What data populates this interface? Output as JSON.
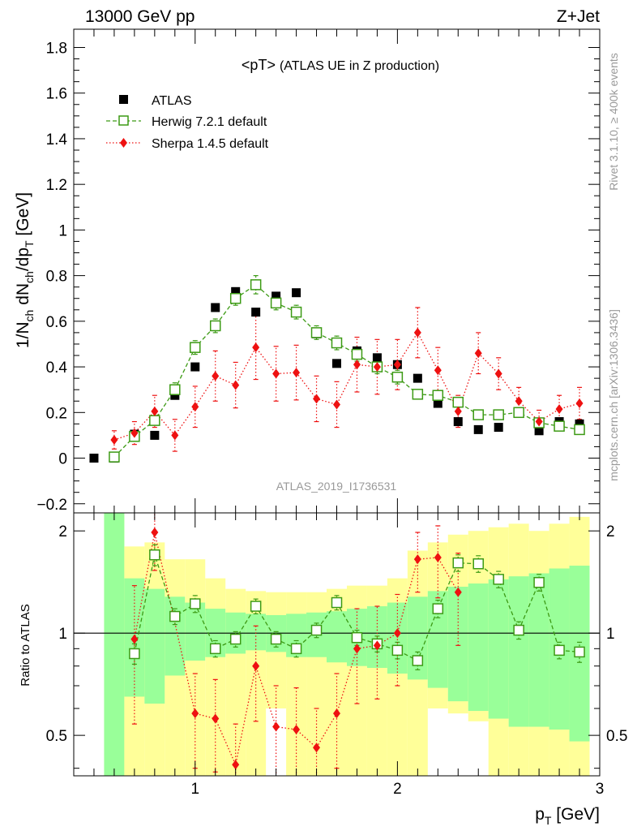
{
  "header": {
    "left": "13000 GeV pp",
    "right": "Z+Jet"
  },
  "side": {
    "rivet": "Rivet 3.1.10, ≥ 400k events",
    "mcplots": "mcplots.cern.ch [arXiv:1306.3436]"
  },
  "colors": {
    "atlas": "#000000",
    "herwig": "#3c9a14",
    "sherpa": "#ee1111",
    "band_outer": "#ffff99",
    "band_inner": "#99ff99",
    "watermark": "#999999"
  },
  "chart_data": [
    {
      "type": "scatter",
      "title": "<pT>",
      "subtitle": "(ATLAS UE in Z production)",
      "watermark": "ATLAS_2019_I1736531",
      "ylabel": "1/N_ch dN_ch/dp_T [GeV]",
      "xlim": [
        0.4,
        3.0
      ],
      "ylim": [
        -0.24,
        1.88
      ],
      "yticks": [
        "−0.2",
        "0",
        "0.2",
        "0.4",
        "0.6",
        "0.8",
        "1",
        "1.2",
        "1.4",
        "1.6",
        "1.8"
      ],
      "ytick_values": [
        -0.2,
        0,
        0.2,
        0.4,
        0.6,
        0.8,
        1.0,
        1.2,
        1.4,
        1.6,
        1.8
      ],
      "legend": [
        "ATLAS",
        "Herwig 7.2.1 default",
        "Sherpa 1.4.5 default"
      ],
      "series": [
        {
          "name": "ATLAS",
          "x": [
            0.5,
            0.6,
            0.7,
            0.8,
            0.9,
            1.0,
            1.1,
            1.2,
            1.3,
            1.4,
            1.5,
            1.6,
            1.7,
            1.8,
            1.9,
            2.0,
            2.1,
            2.2,
            2.3,
            2.4,
            2.5,
            2.6,
            2.7,
            2.8,
            2.9
          ],
          "y": [
            0.0,
            0.0,
            0.105,
            0.1,
            0.275,
            0.4,
            0.66,
            0.73,
            0.64,
            0.71,
            0.725,
            0.545,
            0.415,
            0.47,
            0.44,
            0.41,
            0.35,
            0.24,
            0.16,
            0.125,
            0.135,
            0.2,
            0.12,
            0.16,
            0.15
          ]
        },
        {
          "name": "Herwig 7.2.1 default",
          "x": [
            0.6,
            0.7,
            0.8,
            0.9,
            1.0,
            1.1,
            1.2,
            1.3,
            1.4,
            1.5,
            1.6,
            1.7,
            1.8,
            1.9,
            2.0,
            2.1,
            2.2,
            2.3,
            2.4,
            2.5,
            2.6,
            2.7,
            2.8,
            2.9
          ],
          "y": [
            0.005,
            0.095,
            0.165,
            0.3,
            0.485,
            0.58,
            0.7,
            0.76,
            0.68,
            0.64,
            0.55,
            0.505,
            0.455,
            0.4,
            0.355,
            0.28,
            0.275,
            0.245,
            0.19,
            0.19,
            0.2,
            0.155,
            0.14,
            0.125
          ],
          "err": [
            0.01,
            0.02,
            0.02,
            0.03,
            0.03,
            0.03,
            0.03,
            0.04,
            0.03,
            0.03,
            0.03,
            0.03,
            0.03,
            0.03,
            0.03,
            0.02,
            0.02,
            0.02,
            0.02,
            0.02,
            0.02,
            0.02,
            0.02,
            0.02
          ]
        },
        {
          "name": "Sherpa 1.4.5 default",
          "x": [
            0.6,
            0.7,
            0.8,
            0.9,
            1.0,
            1.1,
            1.2,
            1.3,
            1.4,
            1.5,
            1.6,
            1.7,
            1.8,
            1.9,
            2.0,
            2.1,
            2.2,
            2.3,
            2.4,
            2.5,
            2.6,
            2.7,
            2.8,
            2.9
          ],
          "y": [
            0.08,
            0.11,
            0.205,
            0.1,
            0.225,
            0.36,
            0.32,
            0.485,
            0.37,
            0.375,
            0.26,
            0.235,
            0.41,
            0.4,
            0.41,
            0.55,
            0.385,
            0.205,
            0.46,
            0.37,
            0.25,
            0.16,
            0.215,
            0.24
          ],
          "err": [
            0.04,
            0.05,
            0.07,
            0.07,
            0.09,
            0.11,
            0.1,
            0.14,
            0.12,
            0.12,
            0.1,
            0.1,
            0.12,
            0.12,
            0.11,
            0.11,
            0.1,
            0.07,
            0.09,
            0.07,
            0.06,
            0.05,
            0.06,
            0.07
          ]
        }
      ]
    },
    {
      "type": "scatter",
      "title": "",
      "xlabel": "p_T [GeV]",
      "ylabel": "Ratio to ATLAS",
      "xlim": [
        0.4,
        3.0
      ],
      "ylim": [
        0.38,
        2.26
      ],
      "xticks": [
        "1",
        "2",
        "3"
      ],
      "xtick_values": [
        1.0,
        2.0,
        3.0
      ],
      "yticks": [
        "0.5",
        "1",
        "2"
      ],
      "ytick_values": [
        0.5,
        1.0,
        2.0
      ],
      "reference_line": 1.0,
      "bands": {
        "bin_edges": [
          0.55,
          0.65,
          0.75,
          0.85,
          0.95,
          1.05,
          1.15,
          1.25,
          1.35,
          1.45,
          1.55,
          1.65,
          1.75,
          1.85,
          1.95,
          2.05,
          2.15,
          2.25,
          2.35,
          2.45,
          2.55,
          2.65,
          2.75,
          2.85,
          2.95
        ],
        "outer_low": [
          0.38,
          0.38,
          0.38,
          0.38,
          0.38,
          0.38,
          0.38,
          0.38,
          0.6,
          0.38,
          0.38,
          0.38,
          0.38,
          0.38,
          0.38,
          0.38,
          0.6,
          0.58,
          0.55,
          0.38,
          0.38,
          0.38,
          0.38,
          0.38
        ],
        "outer_high": [
          2.26,
          1.8,
          1.85,
          1.65,
          1.65,
          1.45,
          1.35,
          1.33,
          1.32,
          1.32,
          1.32,
          1.35,
          1.38,
          1.38,
          1.45,
          1.75,
          1.85,
          1.95,
          2.0,
          2.05,
          2.1,
          2.0,
          2.1,
          2.2
        ],
        "inner_low": [
          0.38,
          0.65,
          0.62,
          0.75,
          0.83,
          0.85,
          0.87,
          0.89,
          0.88,
          0.85,
          0.85,
          0.82,
          0.8,
          0.79,
          0.76,
          0.73,
          0.69,
          0.63,
          0.59,
          0.56,
          0.53,
          0.53,
          0.52,
          0.48
        ],
        "inner_high": [
          2.26,
          1.45,
          1.35,
          1.28,
          1.23,
          1.18,
          1.15,
          1.14,
          1.13,
          1.14,
          1.15,
          1.16,
          1.18,
          1.2,
          1.23,
          1.28,
          1.33,
          1.37,
          1.4,
          1.44,
          1.47,
          1.5,
          1.55,
          1.58
        ]
      },
      "series": [
        {
          "name": "Herwig 7.2.1 default",
          "x": [
            0.7,
            0.8,
            0.9,
            1.0,
            1.1,
            1.2,
            1.3,
            1.4,
            1.5,
            1.6,
            1.7,
            1.8,
            1.9,
            2.0,
            2.1,
            2.2,
            2.3,
            2.4,
            2.5,
            2.6,
            2.7,
            2.8,
            2.9
          ],
          "y": [
            0.87,
            1.7,
            1.12,
            1.22,
            0.9,
            0.96,
            1.2,
            0.96,
            0.9,
            1.02,
            1.23,
            0.97,
            0.93,
            0.89,
            0.83,
            1.18,
            1.61,
            1.6,
            1.44,
            1.02,
            1.41,
            0.89,
            0.88
          ],
          "err": [
            0.06,
            0.12,
            0.06,
            0.07,
            0.05,
            0.05,
            0.06,
            0.05,
            0.05,
            0.05,
            0.06,
            0.05,
            0.05,
            0.05,
            0.05,
            0.07,
            0.09,
            0.09,
            0.08,
            0.06,
            0.08,
            0.05,
            0.06
          ]
        },
        {
          "name": "Sherpa 1.4.5 default",
          "x": [
            0.7,
            0.8,
            1.0,
            1.1,
            1.2,
            1.3,
            1.4,
            1.5,
            1.6,
            1.7,
            1.8,
            1.9,
            2.0,
            2.1,
            2.2,
            2.3
          ],
          "y": [
            0.96,
            1.98,
            0.58,
            0.56,
            0.41,
            0.8,
            0.53,
            0.52,
            0.46,
            0.58,
            0.9,
            0.92,
            1.0,
            1.65,
            1.67,
            1.32
          ],
          "err": [
            0.42,
            0.45,
            0.18,
            0.17,
            0.13,
            0.25,
            0.17,
            0.17,
            0.14,
            0.18,
            0.28,
            0.28,
            0.3,
            0.33,
            0.4,
            0.4
          ]
        }
      ]
    }
  ]
}
